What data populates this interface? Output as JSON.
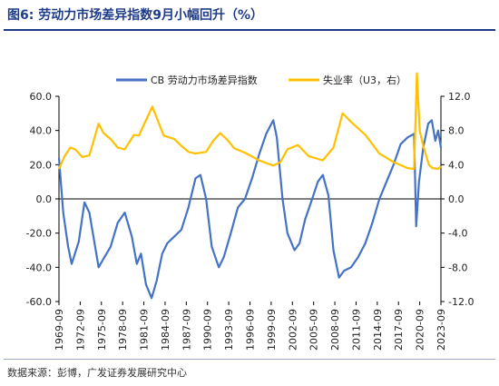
{
  "figure": {
    "title": "图6:  劳动力市场差异指数9月小幅回升（%）",
    "source": "数据来源：彭博，广发证券发展研究中心"
  },
  "colors": {
    "title": "#1f3c88",
    "series_left": "#4472c4",
    "series_right": "#ffc000",
    "axis": "#000000"
  },
  "chart_data": {
    "type": "line",
    "legend_position": "top",
    "grid": false,
    "x_ticks": [
      "1969-09",
      "1972-09",
      "1975-09",
      "1978-09",
      "1981-09",
      "1984-09",
      "1987-09",
      "1990-09",
      "1993-09",
      "1996-09",
      "1999-09",
      "2002-09",
      "2005-09",
      "2008-09",
      "2011-09",
      "2014-09",
      "2017-09",
      "2020-09",
      "2023-09"
    ],
    "y_left": {
      "min": -60,
      "max": 60,
      "ticks": [
        "60.0",
        "40.0",
        "20.0",
        "0.0",
        "-20.0",
        "-40.0",
        "-60.0"
      ]
    },
    "y_right": {
      "min": -12,
      "max": 12,
      "ticks": [
        "12.0",
        "8.0",
        "4.0",
        "0.0",
        "-4.0",
        "-8.0",
        "-12.0"
      ]
    },
    "series": [
      {
        "name": "CB 劳动力市场差异指数",
        "axis": "left",
        "points": [
          [
            1969.7,
            24
          ],
          [
            1970.3,
            -8
          ],
          [
            1971.0,
            -28
          ],
          [
            1971.5,
            -38
          ],
          [
            1972.5,
            -25
          ],
          [
            1973.3,
            -2
          ],
          [
            1974.0,
            -8
          ],
          [
            1975.3,
            -40
          ],
          [
            1976.0,
            -35
          ],
          [
            1977.0,
            -28
          ],
          [
            1978.0,
            -14
          ],
          [
            1979.0,
            -8
          ],
          [
            1980.0,
            -22
          ],
          [
            1980.7,
            -38
          ],
          [
            1981.3,
            -32
          ],
          [
            1982.0,
            -50
          ],
          [
            1982.8,
            -58
          ],
          [
            1983.5,
            -48
          ],
          [
            1984.3,
            -32
          ],
          [
            1985.0,
            -26
          ],
          [
            1986.0,
            -22
          ],
          [
            1987.0,
            -18
          ],
          [
            1988.0,
            -5
          ],
          [
            1989.0,
            12
          ],
          [
            1989.7,
            14
          ],
          [
            1990.5,
            0
          ],
          [
            1991.3,
            -28
          ],
          [
            1992.3,
            -40
          ],
          [
            1993.0,
            -34
          ],
          [
            1994.0,
            -20
          ],
          [
            1995.0,
            -5
          ],
          [
            1996.0,
            0
          ],
          [
            1997.0,
            12
          ],
          [
            1998.0,
            26
          ],
          [
            1999.0,
            38
          ],
          [
            2000.0,
            46
          ],
          [
            2000.5,
            36
          ],
          [
            2001.3,
            0
          ],
          [
            2002.0,
            -20
          ],
          [
            2003.0,
            -30
          ],
          [
            2003.7,
            -26
          ],
          [
            2004.5,
            -12
          ],
          [
            2005.5,
            0
          ],
          [
            2006.3,
            10
          ],
          [
            2007.0,
            14
          ],
          [
            2007.8,
            2
          ],
          [
            2008.5,
            -30
          ],
          [
            2009.3,
            -46
          ],
          [
            2010.0,
            -42
          ],
          [
            2011.0,
            -40
          ],
          [
            2012.0,
            -34
          ],
          [
            2013.0,
            -26
          ],
          [
            2014.0,
            -14
          ],
          [
            2015.0,
            0
          ],
          [
            2016.0,
            10
          ],
          [
            2017.0,
            20
          ],
          [
            2018.0,
            32
          ],
          [
            2019.0,
            36
          ],
          [
            2019.9,
            38
          ],
          [
            2020.2,
            -16
          ],
          [
            2020.6,
            10
          ],
          [
            2021.2,
            30
          ],
          [
            2021.9,
            44
          ],
          [
            2022.4,
            46
          ],
          [
            2022.9,
            34
          ],
          [
            2023.3,
            40
          ],
          [
            2023.7,
            30
          ]
        ]
      },
      {
        "name": "失业率（U3，右）",
        "axis": "right",
        "points": [
          [
            1969.7,
            3.5
          ],
          [
            1970.5,
            5.0
          ],
          [
            1971.3,
            6.0
          ],
          [
            1972.0,
            5.8
          ],
          [
            1973.0,
            4.9
          ],
          [
            1974.0,
            5.1
          ],
          [
            1975.3,
            8.8
          ],
          [
            1976.0,
            7.7
          ],
          [
            1977.0,
            7.0
          ],
          [
            1978.0,
            6.0
          ],
          [
            1979.0,
            5.8
          ],
          [
            1980.3,
            7.5
          ],
          [
            1981.0,
            7.4
          ],
          [
            1981.6,
            8.5
          ],
          [
            1982.9,
            10.8
          ],
          [
            1983.6,
            9.3
          ],
          [
            1984.5,
            7.4
          ],
          [
            1986.0,
            7.0
          ],
          [
            1987.0,
            6.2
          ],
          [
            1988.0,
            5.5
          ],
          [
            1989.0,
            5.3
          ],
          [
            1990.5,
            5.5
          ],
          [
            1991.5,
            6.8
          ],
          [
            1992.5,
            7.7
          ],
          [
            1993.5,
            6.9
          ],
          [
            1994.5,
            5.9
          ],
          [
            1996.0,
            5.4
          ],
          [
            1998.0,
            4.5
          ],
          [
            2000.0,
            3.9
          ],
          [
            2001.0,
            4.3
          ],
          [
            2002.0,
            5.8
          ],
          [
            2003.5,
            6.3
          ],
          [
            2005.0,
            5.0
          ],
          [
            2007.0,
            4.5
          ],
          [
            2008.5,
            6.0
          ],
          [
            2009.8,
            10.0
          ],
          [
            2011.0,
            9.0
          ],
          [
            2013.0,
            7.5
          ],
          [
            2015.0,
            5.3
          ],
          [
            2017.0,
            4.3
          ],
          [
            2019.0,
            3.6
          ],
          [
            2019.9,
            3.5
          ],
          [
            2020.3,
            14.7
          ],
          [
            2020.7,
            8.0
          ],
          [
            2021.2,
            6.2
          ],
          [
            2022.0,
            4.0
          ],
          [
            2022.5,
            3.6
          ],
          [
            2023.3,
            3.5
          ],
          [
            2023.7,
            3.8
          ]
        ]
      }
    ]
  }
}
